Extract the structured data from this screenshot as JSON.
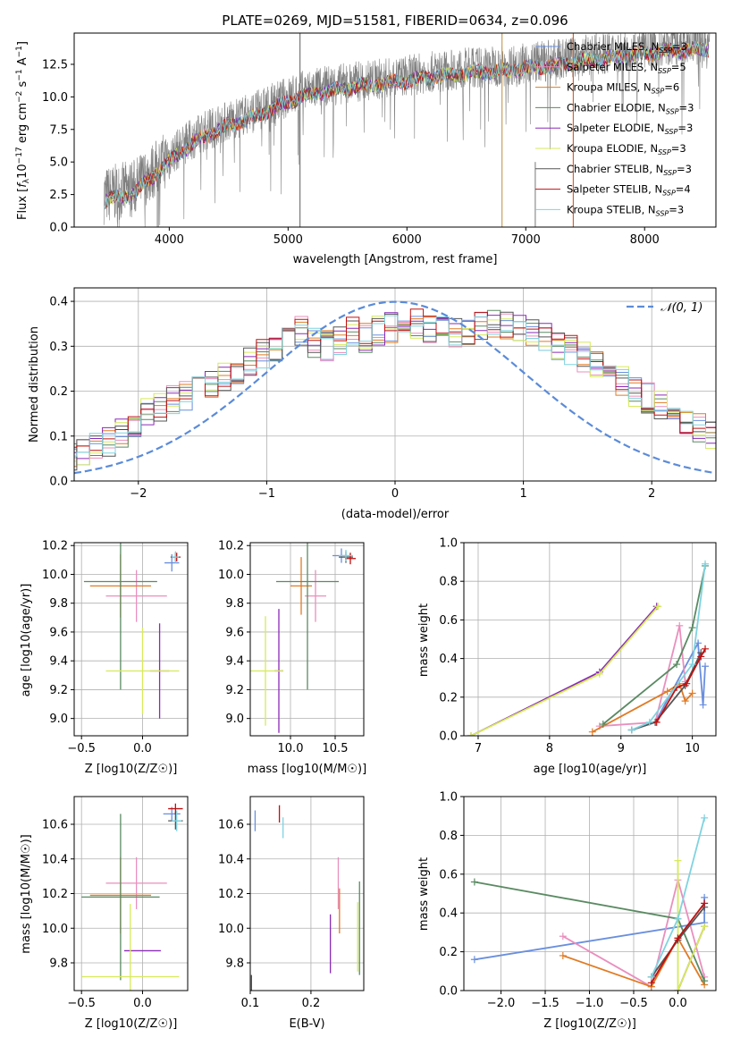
{
  "colors": {
    "chabrier_miles": "#6a8fde",
    "salpeter_miles": "#e98fbe",
    "kroupa_miles": "#e07b25",
    "chabrier_elodie": "#5a8a62",
    "salpeter_elodie": "#8a2ab8",
    "kroupa_elodie": "#d6ea5a",
    "chabrier_stelib": "#555555",
    "salpeter_stelib": "#c01010",
    "kroupa_stelib": "#7fd3e0",
    "observed": "#808080",
    "normal": "#5b8bd9"
  },
  "series_colors": [
    "#6a8fde",
    "#e98fbe",
    "#e07b25",
    "#5a8a62",
    "#8a2ab8",
    "#d6ea5a",
    "#555555",
    "#c01010",
    "#7fd3e0"
  ],
  "chart_data": [
    {
      "id": "spectrum",
      "type": "line",
      "title": "PLATE=0269, MJD=51581, FIBERID=0634, z=0.096",
      "xlabel": "wavelength [Angstrom, rest frame]",
      "ylabel_parts": {
        "a": "Flux [",
        "b": "f",
        "c": "λ",
        "d": "10",
        "e": "−17",
        "f": " erg cm",
        "g": "−2",
        "h": " s",
        "i": "−1",
        "j": " A",
        "k": "−1",
        "l": "]"
      },
      "xlim": [
        3200,
        8600
      ],
      "ylim": [
        0,
        14.9
      ],
      "xticks": [
        "4000",
        "5000",
        "6000",
        "7000",
        "8000"
      ],
      "yticks": [
        "0.0",
        "2.5",
        "5.0",
        "7.5",
        "10.0",
        "12.5"
      ],
      "legend": [
        {
          "label": "Chabrier MILES, N",
          "sub": "SSP",
          "eq": "=3"
        },
        {
          "label": "Salpeter MILES, N",
          "sub": "SSP",
          "eq": "=5"
        },
        {
          "label": "Kroupa MILES, N",
          "sub": "SSP",
          "eq": "=6"
        },
        {
          "label": "Chabrier ELODIE, N",
          "sub": "SSP",
          "eq": "=3"
        },
        {
          "label": "Salpeter ELODIE, N",
          "sub": "SSP",
          "eq": "=3"
        },
        {
          "label": "Kroupa ELODIE, N",
          "sub": "SSP",
          "eq": "=3"
        },
        {
          "label": "Chabrier STELIB, N",
          "sub": "SSP",
          "eq": "=3"
        },
        {
          "label": "Salpeter STELIB, N",
          "sub": "SSP",
          "eq": "=4"
        },
        {
          "label": "Kroupa STELIB, N",
          "sub": "SSP",
          "eq": "=3"
        }
      ],
      "continuum": [
        [
          3450,
          2.4
        ],
        [
          3700,
          3.0
        ],
        [
          3900,
          4.6
        ],
        [
          4100,
          6.2
        ],
        [
          4300,
          7.4
        ],
        [
          4500,
          8.2
        ],
        [
          4700,
          8.8
        ],
        [
          4900,
          9.6
        ],
        [
          5100,
          10.4
        ],
        [
          5300,
          10.8
        ],
        [
          5600,
          11.2
        ],
        [
          5900,
          11.5
        ],
        [
          6200,
          11.9
        ],
        [
          6500,
          12.2
        ],
        [
          6800,
          12.4
        ],
        [
          7000,
          12.6
        ],
        [
          7300,
          12.9
        ],
        [
          7600,
          13.3
        ],
        [
          7900,
          13.6
        ],
        [
          8200,
          13.9
        ],
        [
          8550,
          14.1
        ]
      ],
      "spikes_full": [
        5100,
        6800,
        7400
      ],
      "spikes_partial": [
        3900,
        7080
      ]
    },
    {
      "id": "residuals",
      "type": "histogram",
      "xlabel": "(data-model)/error",
      "ylabel": "Normed distribution",
      "xlim": [
        -2.5,
        2.5
      ],
      "ylim": [
        0,
        0.43
      ],
      "xticks": [
        "−2",
        "−1",
        "0",
        "1",
        "2"
      ],
      "yticks": [
        "0.0",
        "0.1",
        "0.2",
        "0.3",
        "0.4"
      ],
      "legend_label": "𝒩(0, 1)",
      "bin_width": 0.1,
      "shape": [
        0.055,
        0.052,
        0.048,
        0.05,
        0.058,
        0.063,
        0.072,
        0.085,
        0.105,
        0.13,
        0.15,
        0.165,
        0.18,
        0.19,
        0.2,
        0.21,
        0.23,
        0.25,
        0.27,
        0.285,
        0.3,
        0.32,
        0.335,
        0.31,
        0.3,
        0.31,
        0.33,
        0.32,
        0.335,
        0.34,
        0.345,
        0.35,
        0.34,
        0.335,
        0.33,
        0.335,
        0.345,
        0.355,
        0.35,
        0.34,
        0.325,
        0.32,
        0.305,
        0.29,
        0.275,
        0.255,
        0.24,
        0.22,
        0.2,
        0.185,
        0.17,
        0.15,
        0.13,
        0.115,
        0.1,
        0.09,
        0.08,
        0.07,
        0.065,
        0.058,
        0.05,
        0.045,
        0.04,
        0.036,
        0.032,
        0.03,
        0.028,
        0.026,
        0.025,
        0.024
      ]
    },
    {
      "id": "age_vs_Z",
      "type": "errorbar",
      "xlabel": "Z [log10(Z/Z☉)]",
      "ylabel": "age  [log10(age/yr)]",
      "xlim": [
        -0.56,
        0.37
      ],
      "ylim": [
        8.88,
        10.22
      ],
      "xticks": [
        "−0.5",
        "0.0"
      ],
      "xtickvals": [
        -0.5,
        0.0
      ],
      "yticks": [
        "9.0",
        "9.2",
        "9.4",
        "9.6",
        "9.8",
        "10.0",
        "10.2"
      ],
      "ytickvals": [
        9.0,
        9.2,
        9.4,
        9.6,
        9.8,
        10.0,
        10.2
      ],
      "points": [
        {
          "s": 0,
          "x": 0.24,
          "xe": 0.06,
          "y": 10.08,
          "ye": 0.06
        },
        {
          "s": 1,
          "x": -0.05,
          "xe": 0.25,
          "y": 9.85,
          "ye": 0.18
        },
        {
          "s": 2,
          "x": -0.18,
          "xe": 0.25,
          "y": 9.92,
          "ye": 0.22
        },
        {
          "s": 3,
          "x": -0.18,
          "xe": 0.3,
          "y": 9.95,
          "ye": 0.75
        },
        {
          "s": 4,
          "x": 0.14,
          "xe": 0.08,
          "y": 9.33,
          "ye": 0.33
        },
        {
          "s": 5,
          "x": 0.0,
          "xe": 0.3,
          "y": 9.33,
          "ye": 0.3
        },
        {
          "s": 6,
          "x": 0.27,
          "xe": 0.04,
          "y": 10.12,
          "ye": 0.03
        },
        {
          "s": 7,
          "x": 0.28,
          "xe": 0.03,
          "y": 10.12,
          "ye": 0.03
        },
        {
          "s": 8,
          "x": 0.27,
          "xe": 0.03,
          "y": 10.12,
          "ye": 0.04
        }
      ]
    },
    {
      "id": "age_vs_mass",
      "type": "errorbar",
      "xlabel": "mass [log10(M/M☉)]",
      "xlim": [
        9.55,
        10.82
      ],
      "ylim": [
        8.88,
        10.22
      ],
      "xticks": [
        "10.0",
        "10.5"
      ],
      "xtickvals": [
        10.0,
        10.5
      ],
      "yticks": [
        "9.0",
        "9.2",
        "9.4",
        "9.6",
        "9.8",
        "10.0",
        "10.2"
      ],
      "ytickvals": [
        9.0,
        9.2,
        9.4,
        9.6,
        9.8,
        10.0,
        10.2
      ],
      "points": [
        {
          "s": 0,
          "x": 10.57,
          "xe": 0.1,
          "y": 10.13,
          "ye": 0.05
        },
        {
          "s": 1,
          "x": 10.28,
          "xe": 0.12,
          "y": 9.85,
          "ye": 0.18
        },
        {
          "s": 2,
          "x": 10.12,
          "xe": 0.12,
          "y": 9.92,
          "ye": 0.2
        },
        {
          "s": 3,
          "x": 10.19,
          "xe": 0.35,
          "y": 9.95,
          "ye": 0.75
        },
        {
          "s": 4,
          "x": 9.87,
          "xe": 0.05,
          "y": 9.33,
          "ye": 0.43
        },
        {
          "s": 5,
          "x": 9.72,
          "xe": 0.2,
          "y": 9.33,
          "ye": 0.38
        },
        {
          "s": 6,
          "x": 10.62,
          "xe": 0.08,
          "y": 10.12,
          "ye": 0.04
        },
        {
          "s": 7,
          "x": 10.67,
          "xe": 0.06,
          "y": 10.11,
          "ye": 0.04
        },
        {
          "s": 8,
          "x": 10.62,
          "xe": 0.08,
          "y": 10.13,
          "ye": 0.04
        }
      ]
    },
    {
      "id": "massweight_vs_age",
      "type": "line",
      "xlabel": "age  [log10(age/yr)]",
      "ylabel": "mass weight",
      "xlim": [
        6.8,
        10.33
      ],
      "ylim": [
        0,
        1.0
      ],
      "xticks": [
        "7",
        "8",
        "9",
        "10"
      ],
      "xtickvals": [
        7,
        8,
        9,
        10
      ],
      "yticks": [
        "0.0",
        "0.2",
        "0.4",
        "0.6",
        "0.8",
        "1.0"
      ],
      "ytickvals": [
        0,
        0.2,
        0.4,
        0.6,
        0.8,
        1.0
      ],
      "series": [
        {
          "s": 0,
          "x": [
            9.15,
            9.48,
            10.08,
            10.15,
            10.18
          ],
          "y": [
            0.03,
            0.07,
            0.48,
            0.16,
            0.36
          ]
        },
        {
          "s": 1,
          "x": [
            8.7,
            9.48,
            9.82,
            9.9
          ],
          "y": [
            0.05,
            0.07,
            0.57,
            0.28
          ]
        },
        {
          "s": 2,
          "x": [
            8.6,
            9.65,
            9.82,
            9.9,
            10.0
          ],
          "y": [
            0.02,
            0.23,
            0.27,
            0.18,
            0.22
          ]
        },
        {
          "s": 3,
          "x": [
            8.75,
            9.78,
            10.0,
            10.18
          ],
          "y": [
            0.06,
            0.37,
            0.56,
            0.88
          ]
        },
        {
          "s": 4,
          "x": [
            6.9,
            8.7,
            9.5
          ],
          "y": [
            0.0,
            0.33,
            0.67
          ]
        },
        {
          "s": 5,
          "x": [
            6.9,
            8.7,
            9.52
          ],
          "y": [
            0.0,
            0.32,
            0.67
          ]
        },
        {
          "s": 6,
          "x": [
            9.15,
            9.48,
            9.9,
            10.12
          ],
          "y": [
            0.03,
            0.07,
            0.26,
            0.43
          ]
        },
        {
          "s": 7,
          "x": [
            9.5,
            9.78,
            9.92,
            10.12,
            10.18
          ],
          "y": [
            0.07,
            0.25,
            0.27,
            0.41,
            0.45
          ]
        },
        {
          "s": 8,
          "x": [
            9.15,
            9.4,
            10.0,
            10.18
          ],
          "y": [
            0.03,
            0.07,
            0.37,
            0.89
          ]
        }
      ]
    },
    {
      "id": "mass_vs_Z",
      "type": "errorbar",
      "xlabel": "Z [log10(Z/Z☉)]",
      "ylabel": "mass [log10(M/M☉)]",
      "xlim": [
        -0.56,
        0.37
      ],
      "ylim": [
        9.64,
        10.76
      ],
      "xticks": [
        "−0.5",
        "0.0"
      ],
      "xtickvals": [
        -0.5,
        0.0
      ],
      "yticks": [
        "9.8",
        "10.0",
        "10.2",
        "10.4",
        "10.6"
      ],
      "ytickvals": [
        9.8,
        10.0,
        10.2,
        10.4,
        10.6
      ],
      "points": [
        {
          "s": 0,
          "x": 0.24,
          "xe": 0.07,
          "y": 10.66,
          "ye": 0.04
        },
        {
          "s": 1,
          "x": -0.05,
          "xe": 0.25,
          "y": 10.26,
          "ye": 0.15
        },
        {
          "s": 2,
          "x": -0.18,
          "xe": 0.25,
          "y": 10.19,
          "ye": 0.22
        },
        {
          "s": 3,
          "x": -0.18,
          "xe": 0.32,
          "y": 10.18,
          "ye": 0.48
        },
        {
          "s": 4,
          "x": 0.0,
          "xe": 0.15,
          "y": 9.87,
          "ye": 0.0
        },
        {
          "s": 5,
          "x": -0.1,
          "xe": 0.4,
          "y": 9.72,
          "ye": 0.42
        },
        {
          "s": 6,
          "x": 0.27,
          "xe": 0.06,
          "y": 10.62,
          "ye": 0.05
        },
        {
          "s": 7,
          "x": 0.27,
          "xe": 0.06,
          "y": 10.69,
          "ye": 0.03
        },
        {
          "s": 8,
          "x": 0.28,
          "xe": 0.04,
          "y": 10.62,
          "ye": 0.06
        }
      ]
    },
    {
      "id": "mass_vs_EBV",
      "type": "errorbar",
      "xlabel": "E(B-V)",
      "xlim": [
        0.1,
        0.287
      ],
      "ylim": [
        9.64,
        10.76
      ],
      "xticks": [
        "0.1",
        "0.2"
      ],
      "xtickvals": [
        0.1,
        0.2
      ],
      "yticks": [
        "9.8",
        "10.0",
        "10.2",
        "10.4",
        "10.6"
      ],
      "ytickvals": [
        9.8,
        10.0,
        10.2,
        10.4,
        10.6
      ],
      "points": [
        {
          "s": 0,
          "x": 0.108,
          "xe": 0,
          "y": 10.62,
          "ye": 0.06
        },
        {
          "s": 1,
          "x": 0.245,
          "xe": 0,
          "y": 10.26,
          "ye": 0.15
        },
        {
          "s": 2,
          "x": 0.247,
          "xe": 0,
          "y": 10.1,
          "ye": 0.13
        },
        {
          "s": 3,
          "x": 0.28,
          "xe": 0,
          "y": 10.0,
          "ye": 0.27
        },
        {
          "s": 4,
          "x": 0.232,
          "xe": 0,
          "y": 9.91,
          "ye": 0.17
        },
        {
          "s": 5,
          "x": 0.277,
          "xe": 0,
          "y": 9.95,
          "ye": 0.2
        },
        {
          "s": 6,
          "x": 0.102,
          "xe": 0,
          "y": 9.68,
          "ye": 0.05
        },
        {
          "s": 7,
          "x": 0.148,
          "xe": 0,
          "y": 10.66,
          "ye": 0.05
        },
        {
          "s": 8,
          "x": 0.154,
          "xe": 0,
          "y": 10.58,
          "ye": 0.06
        }
      ]
    },
    {
      "id": "massweight_vs_Z",
      "type": "line",
      "xlabel": "Z [log10(Z/Z☉)]",
      "ylabel": "mass weight",
      "xlim": [
        -2.42,
        0.43
      ],
      "ylim": [
        0,
        1.0
      ],
      "xticks": [
        "−2.0",
        "−1.5",
        "−1.0",
        "−0.5",
        "0.0"
      ],
      "xtickvals": [
        -2.0,
        -1.5,
        -1.0,
        -0.5,
        0.0
      ],
      "yticks": [
        "0.0",
        "0.2",
        "0.4",
        "0.6",
        "0.8",
        "1.0"
      ],
      "ytickvals": [
        0,
        0.2,
        0.4,
        0.6,
        0.8,
        1.0
      ],
      "series": [
        {
          "s": 0,
          "x": [
            -2.3,
            0.3,
            0.3
          ],
          "y": [
            0.16,
            0.35,
            0.48
          ]
        },
        {
          "s": 1,
          "x": [
            -1.3,
            -0.3,
            0.0,
            0.3
          ],
          "y": [
            0.28,
            0.02,
            0.57,
            0.07
          ]
        },
        {
          "s": 2,
          "x": [
            -1.3,
            -0.3,
            0.0,
            0.3
          ],
          "y": [
            0.18,
            0.02,
            0.27,
            0.03
          ]
        },
        {
          "s": 3,
          "x": [
            -2.3,
            0.0,
            0.3
          ],
          "y": [
            0.56,
            0.37,
            0.05
          ]
        },
        {
          "s": 4,
          "x": [
            0.0,
            0.3
          ],
          "y": [
            0.0,
            0.33
          ]
        },
        {
          "s": 5,
          "x": [
            0.0,
            0.0,
            0.3
          ],
          "y": [
            0.67,
            0.0,
            0.33
          ]
        },
        {
          "s": 6,
          "x": [
            -0.3,
            0.0,
            0.3
          ],
          "y": [
            0.07,
            0.26,
            0.43
          ]
        },
        {
          "s": 7,
          "x": [
            -0.3,
            0.0,
            0.3
          ],
          "y": [
            0.04,
            0.27,
            0.45
          ]
        },
        {
          "s": 8,
          "x": [
            -0.3,
            0.0,
            0.3
          ],
          "y": [
            0.07,
            0.37,
            0.89
          ]
        }
      ]
    }
  ]
}
